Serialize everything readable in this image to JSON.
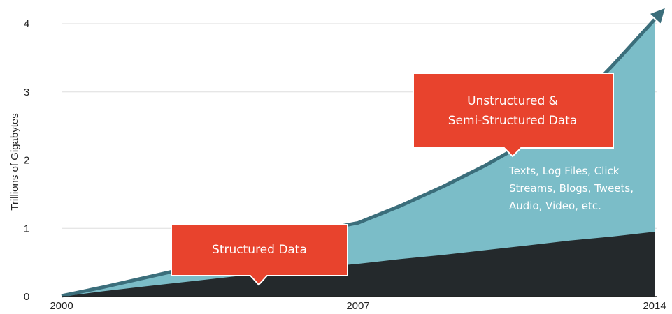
{
  "chart_data": {
    "type": "area",
    "title": "",
    "xlabel": "",
    "ylabel": "Trillions of Gigabytes",
    "x_ticks": [
      "2000",
      "2007",
      "2014"
    ],
    "y_ticks": [
      "0",
      "1",
      "2",
      "3",
      "4"
    ],
    "xlim": [
      2000,
      2014
    ],
    "ylim": [
      0,
      4
    ],
    "grid": true,
    "x": [
      2000,
      2001,
      2002,
      2003,
      2004,
      2005,
      2006,
      2007,
      2008,
      2009,
      2010,
      2011,
      2012,
      2013,
      2014
    ],
    "series": [
      {
        "values": [
          0,
          0.08,
          0.15,
          0.22,
          0.29,
          0.36,
          0.42,
          0.48,
          0.55,
          0.61,
          0.68,
          0.75,
          0.82,
          0.88,
          0.95
        ],
        "color": "#24292c"
      },
      {
        "values": [
          0,
          0.13,
          0.27,
          0.41,
          0.57,
          0.77,
          0.95,
          1.07,
          1.32,
          1.6,
          1.91,
          2.26,
          2.73,
          3.37,
          4.05
        ],
        "color": "#7bbdc8"
      }
    ],
    "arrow_color": "#3b6e7b",
    "annotations": [
      {
        "label": "Structured Data",
        "color": "#e8432d"
      },
      {
        "label_lines": [
          "Unstructured &",
          "Semi-Structured Data"
        ],
        "color": "#e8432d"
      },
      {
        "label_lines": [
          "Texts, Log Files, Click",
          "Streams, Blogs, Tweets,",
          "Audio, Video, etc."
        ],
        "color": "#ffffff"
      }
    ]
  }
}
